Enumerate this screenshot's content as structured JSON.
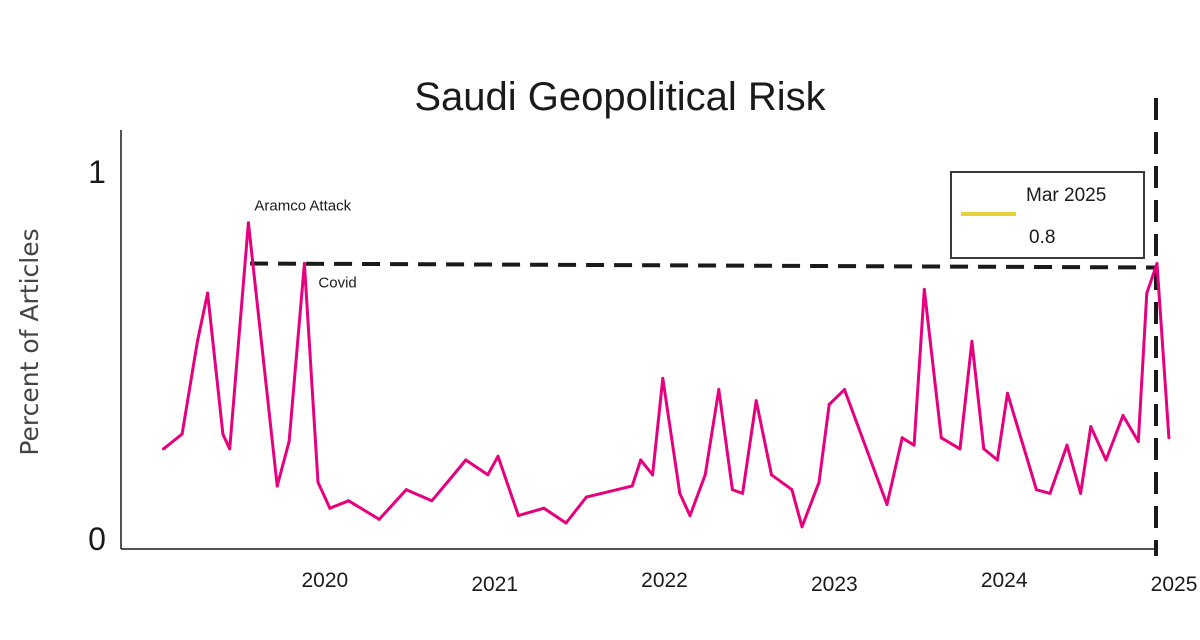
{
  "chart_data": {
    "type": "line",
    "title": "Saudi Geopolitical Risk",
    "xlabel": "",
    "ylabel": "Percent of Articles",
    "yticks": [
      "0",
      "1"
    ],
    "ylim": [
      0,
      1.13
    ],
    "xlim": [
      2019.0,
      2025.1
    ],
    "xticks": [
      {
        "value": 2020.0,
        "label": "2020"
      },
      {
        "value": 2021.0,
        "label": "2021"
      },
      {
        "value": 2022.0,
        "label": "2022"
      },
      {
        "value": 2023.0,
        "label": "2023"
      },
      {
        "value": 2024.0,
        "label": "2024"
      },
      {
        "value": 2025.0,
        "label": "2025"
      }
    ],
    "series": [
      {
        "name": "Saudi Geopolitical Risk",
        "color": "#e6007e",
        "points": [
          [
            2019.25,
            0.27
          ],
          [
            2019.36,
            0.31
          ],
          [
            2019.45,
            0.56
          ],
          [
            2019.51,
            0.69
          ],
          [
            2019.6,
            0.31
          ],
          [
            2019.64,
            0.27
          ],
          [
            2019.75,
            0.88
          ],
          [
            2019.92,
            0.17
          ],
          [
            2019.99,
            0.29
          ],
          [
            2020.08,
            0.77
          ],
          [
            2020.16,
            0.18
          ],
          [
            2020.23,
            0.11
          ],
          [
            2020.34,
            0.13
          ],
          [
            2020.52,
            0.08
          ],
          [
            2020.68,
            0.16
          ],
          [
            2020.83,
            0.13
          ],
          [
            2020.94,
            0.19
          ],
          [
            2021.03,
            0.24
          ],
          [
            2021.16,
            0.2
          ],
          [
            2021.22,
            0.25
          ],
          [
            2021.34,
            0.09
          ],
          [
            2021.49,
            0.11
          ],
          [
            2021.62,
            0.07
          ],
          [
            2021.74,
            0.14
          ],
          [
            2021.92,
            0.16
          ],
          [
            2022.01,
            0.17
          ],
          [
            2022.06,
            0.24
          ],
          [
            2022.13,
            0.2
          ],
          [
            2022.19,
            0.46
          ],
          [
            2022.29,
            0.15
          ],
          [
            2022.35,
            0.09
          ],
          [
            2022.44,
            0.2
          ],
          [
            2022.52,
            0.43
          ],
          [
            2022.6,
            0.16
          ],
          [
            2022.66,
            0.15
          ],
          [
            2022.74,
            0.4
          ],
          [
            2022.83,
            0.2
          ],
          [
            2022.95,
            0.16
          ],
          [
            2023.01,
            0.06
          ],
          [
            2023.11,
            0.18
          ],
          [
            2023.17,
            0.39
          ],
          [
            2023.26,
            0.43
          ],
          [
            2023.51,
            0.12
          ],
          [
            2023.6,
            0.3
          ],
          [
            2023.67,
            0.28
          ],
          [
            2023.73,
            0.7
          ],
          [
            2023.83,
            0.3
          ],
          [
            2023.94,
            0.27
          ],
          [
            2024.01,
            0.56
          ],
          [
            2024.08,
            0.27
          ],
          [
            2024.16,
            0.24
          ],
          [
            2024.22,
            0.42
          ],
          [
            2024.39,
            0.16
          ],
          [
            2024.47,
            0.15
          ],
          [
            2024.57,
            0.28
          ],
          [
            2024.65,
            0.15
          ],
          [
            2024.71,
            0.33
          ],
          [
            2024.8,
            0.24
          ],
          [
            2024.9,
            0.36
          ],
          [
            2024.99,
            0.29
          ],
          [
            2025.04,
            0.69
          ],
          [
            2025.1,
            0.77
          ],
          [
            2025.17,
            0.3
          ]
        ]
      }
    ],
    "annotations": [
      {
        "text": "Aramco Attack",
        "x": 2019.75,
        "y": 0.88
      },
      {
        "text": "Covid",
        "x": 2020.08,
        "y": 0.77
      }
    ],
    "reference_line": {
      "y": 0.77,
      "x_start": 2019.76,
      "x_end": 2025.1,
      "style": "dashed"
    },
    "marker_line": {
      "x": 2025.1,
      "style": "dashed"
    },
    "legend": {
      "position": "top-right",
      "month": "Mar 2025",
      "value": "0.8",
      "swatch_color": "#e6d23a"
    }
  }
}
